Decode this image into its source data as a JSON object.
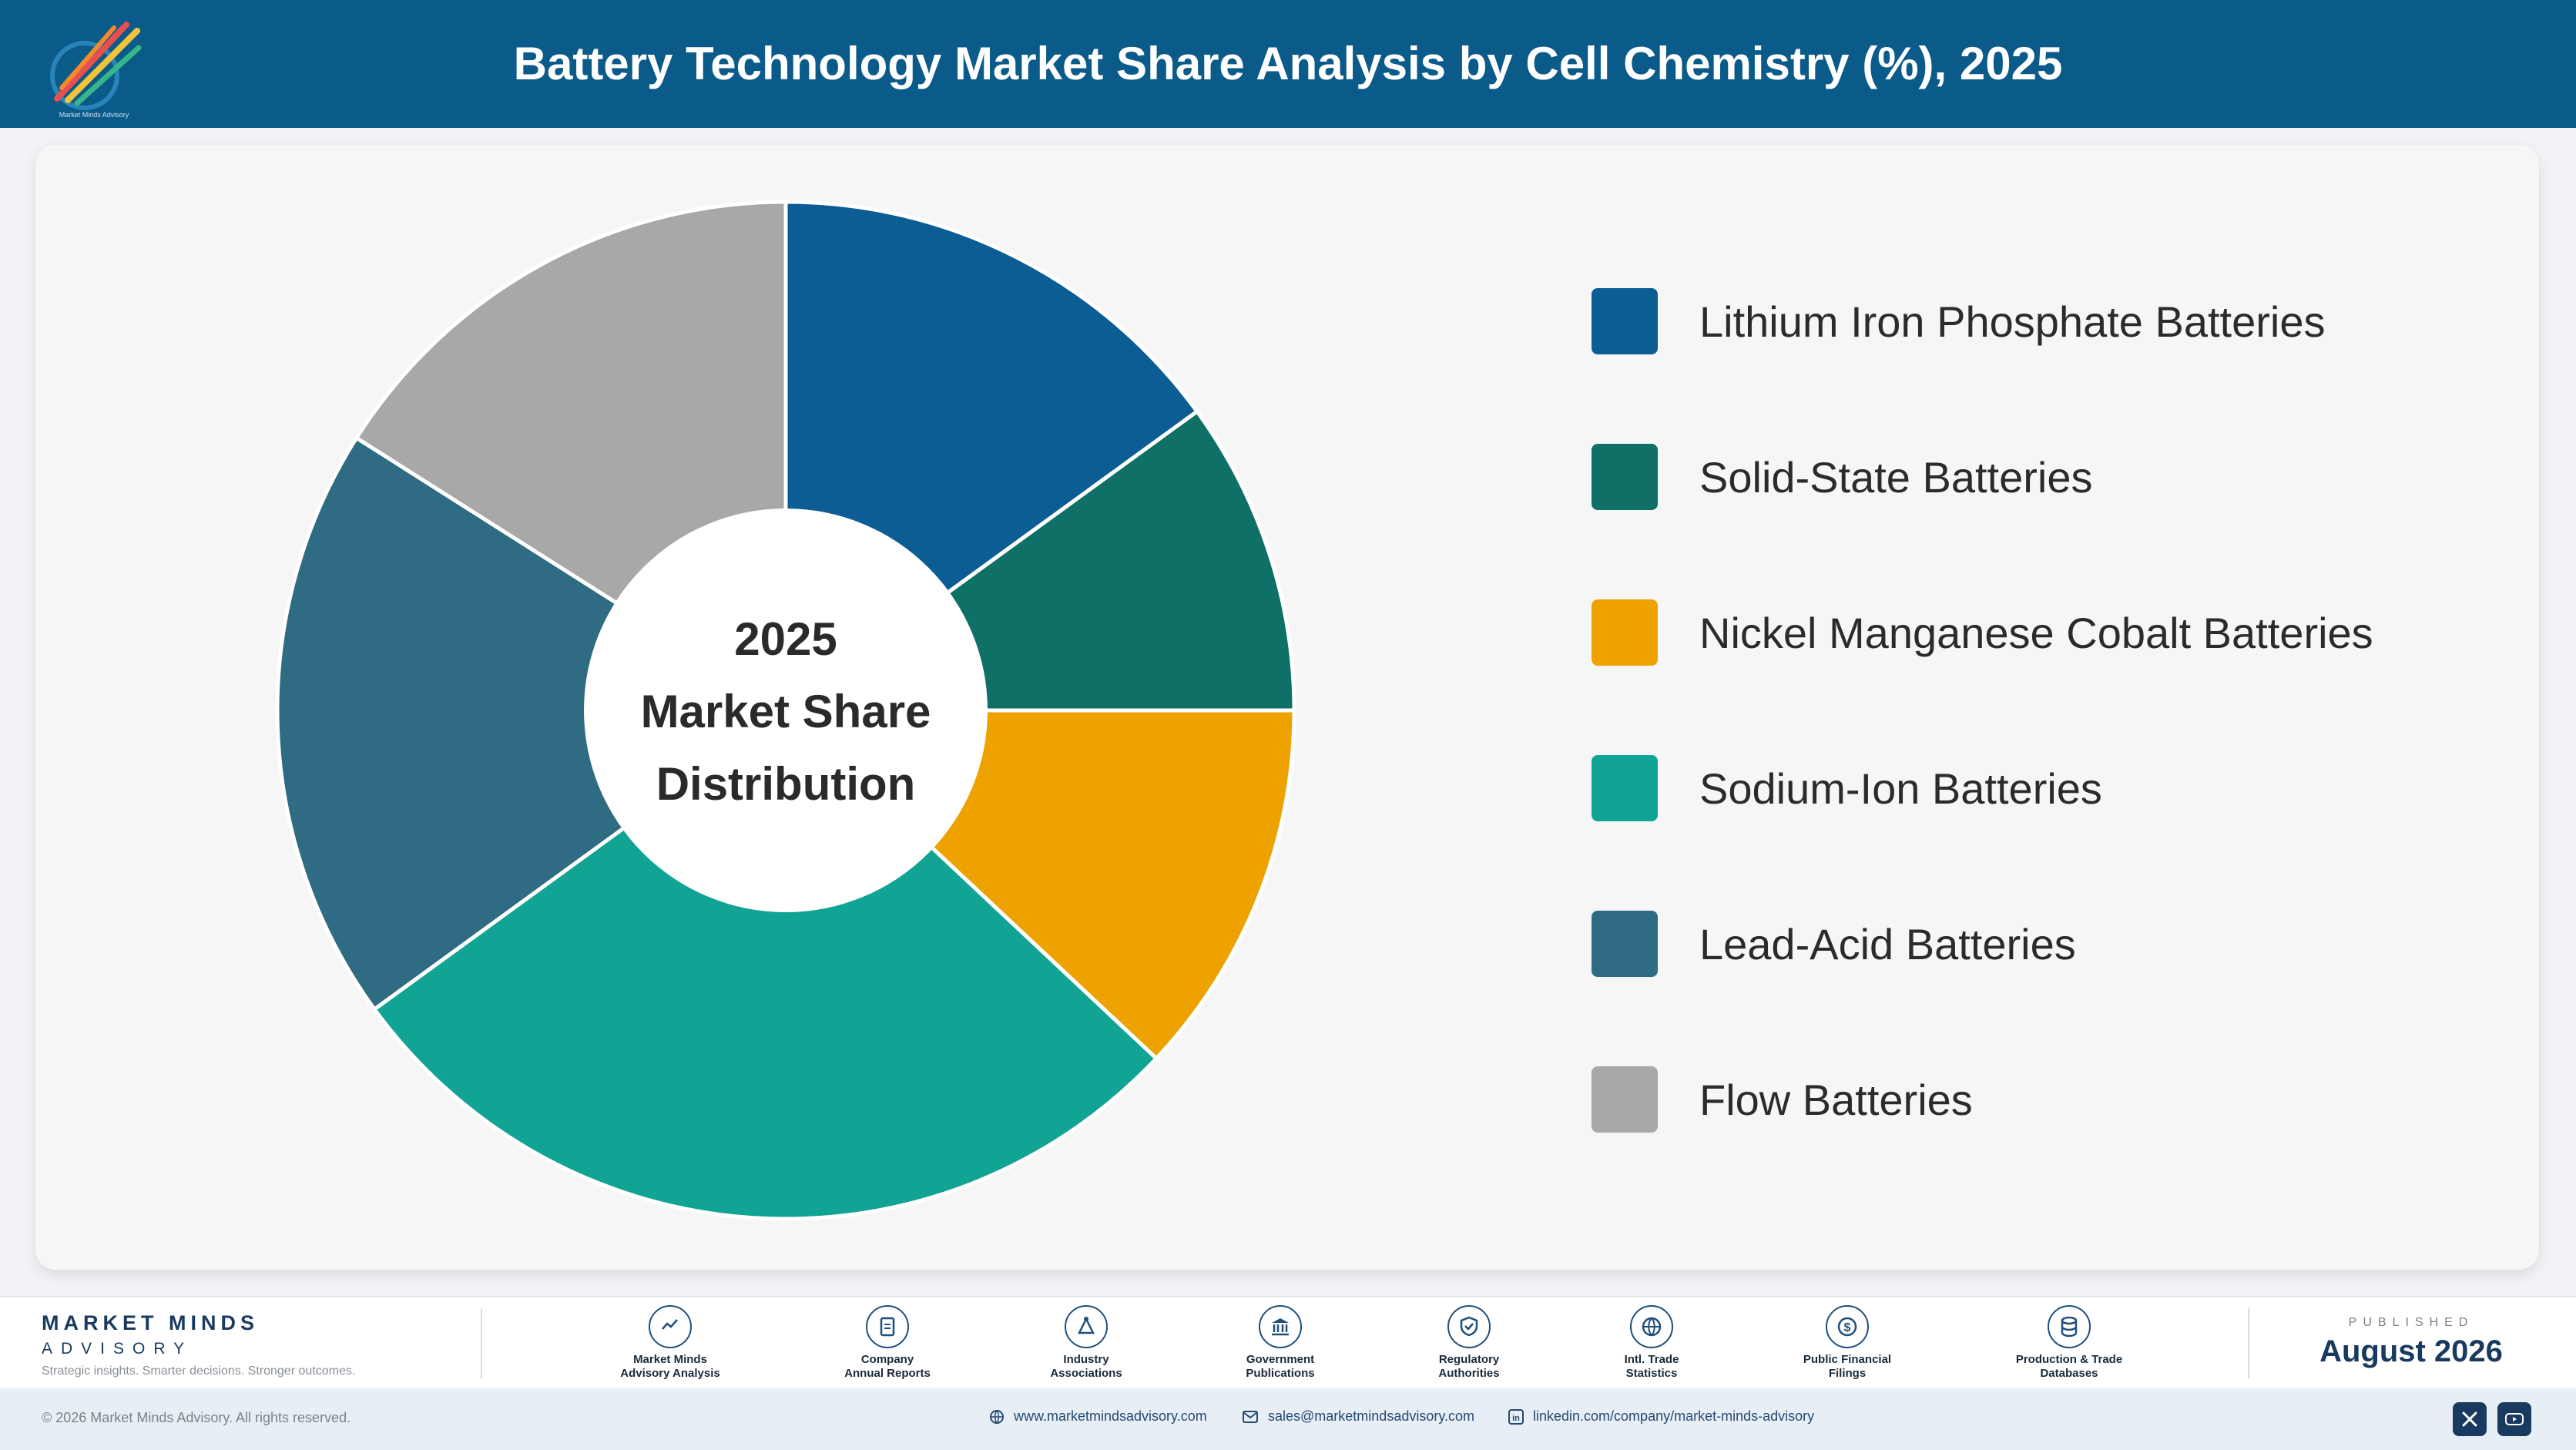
{
  "header": {
    "title": "Battery Technology Market Share Analysis by Cell Chemistry (%), 2025",
    "logo_text": "Market Minds Advisory"
  },
  "chart_data": {
    "type": "pie",
    "variant": "donut",
    "title": "Battery Technology Market Share Analysis by Cell Chemistry (%), 2025",
    "center_label": [
      "2025",
      "Market Share",
      "Distribution"
    ],
    "legend_position": "right",
    "categories": [
      "Lithium Iron Phosphate Batteries",
      "Solid-State Batteries",
      "Nickel Manganese Cobalt Batteries",
      "Sodium-Ion Batteries",
      "Lead-Acid Batteries",
      "Flow Batteries"
    ],
    "values": [
      15,
      10,
      12,
      28,
      19,
      16
    ],
    "colors": [
      "#0b5d94",
      "#0e7066",
      "#eea200",
      "#11a394",
      "#2f6b82",
      "#a8a8a8"
    ]
  },
  "footer": {
    "brand_name": "MARKET MINDS",
    "brand_sub": "ADVISORY",
    "brand_tagline": "Strategic insights. Smarter decisions. Stronger outcomes.",
    "sources": [
      {
        "line1": "Market Minds",
        "line2": "Advisory Analysis",
        "icon": "chart-line-icon"
      },
      {
        "line1": "Company",
        "line2": "Annual Reports",
        "icon": "document-icon"
      },
      {
        "line1": "Industry",
        "line2": "Associations",
        "icon": "network-icon"
      },
      {
        "line1": "Government",
        "line2": "Publications",
        "icon": "building-icon"
      },
      {
        "line1": "Regulatory",
        "line2": "Authorities",
        "icon": "shield-icon"
      },
      {
        "line1": "Intl. Trade",
        "line2": "Statistics",
        "icon": "globe-icon"
      },
      {
        "line1": "Public Financial",
        "line2": "Filings",
        "icon": "dollar-icon"
      },
      {
        "line1": "Production & Trade",
        "line2": "Databases",
        "icon": "database-icon"
      }
    ],
    "published_label": "PUBLISHED",
    "published_date": "August 2026"
  },
  "bottom": {
    "copyright": "© 2026 Market Minds Advisory. All rights reserved.",
    "website": "www.marketmindsadvisory.com",
    "email": "sales@marketmindsadvisory.com",
    "linkedin": "linkedin.com/company/market-minds-advisory"
  }
}
